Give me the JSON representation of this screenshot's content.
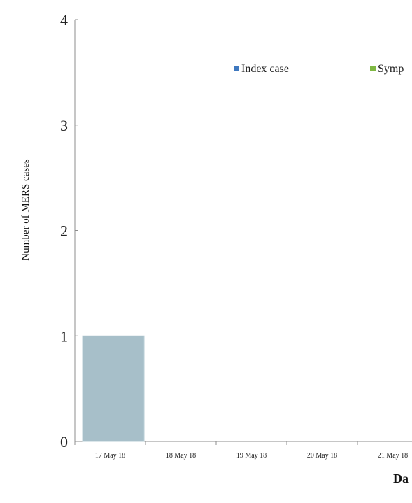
{
  "chart_data": {
    "type": "bar",
    "categories": [
      "17 May 18",
      "18 May 18",
      "19 May 18",
      "20 May 18",
      "21 May 18"
    ],
    "series": [
      {
        "name": "Index case",
        "color": "#3f78bf",
        "bar_color": "#a7bfc9",
        "values": [
          1,
          0,
          0,
          0,
          0
        ]
      },
      {
        "name": "Symp",
        "color": "#7fb843",
        "values": [
          0,
          0,
          0,
          0,
          0
        ]
      }
    ],
    "y_ticks": [
      "0",
      "1",
      "2",
      "3",
      "4"
    ],
    "ylim": [
      0,
      4
    ],
    "ylabel": "Number of MERS cases",
    "xlabel": "Da",
    "legend": "top",
    "grid": false
  }
}
